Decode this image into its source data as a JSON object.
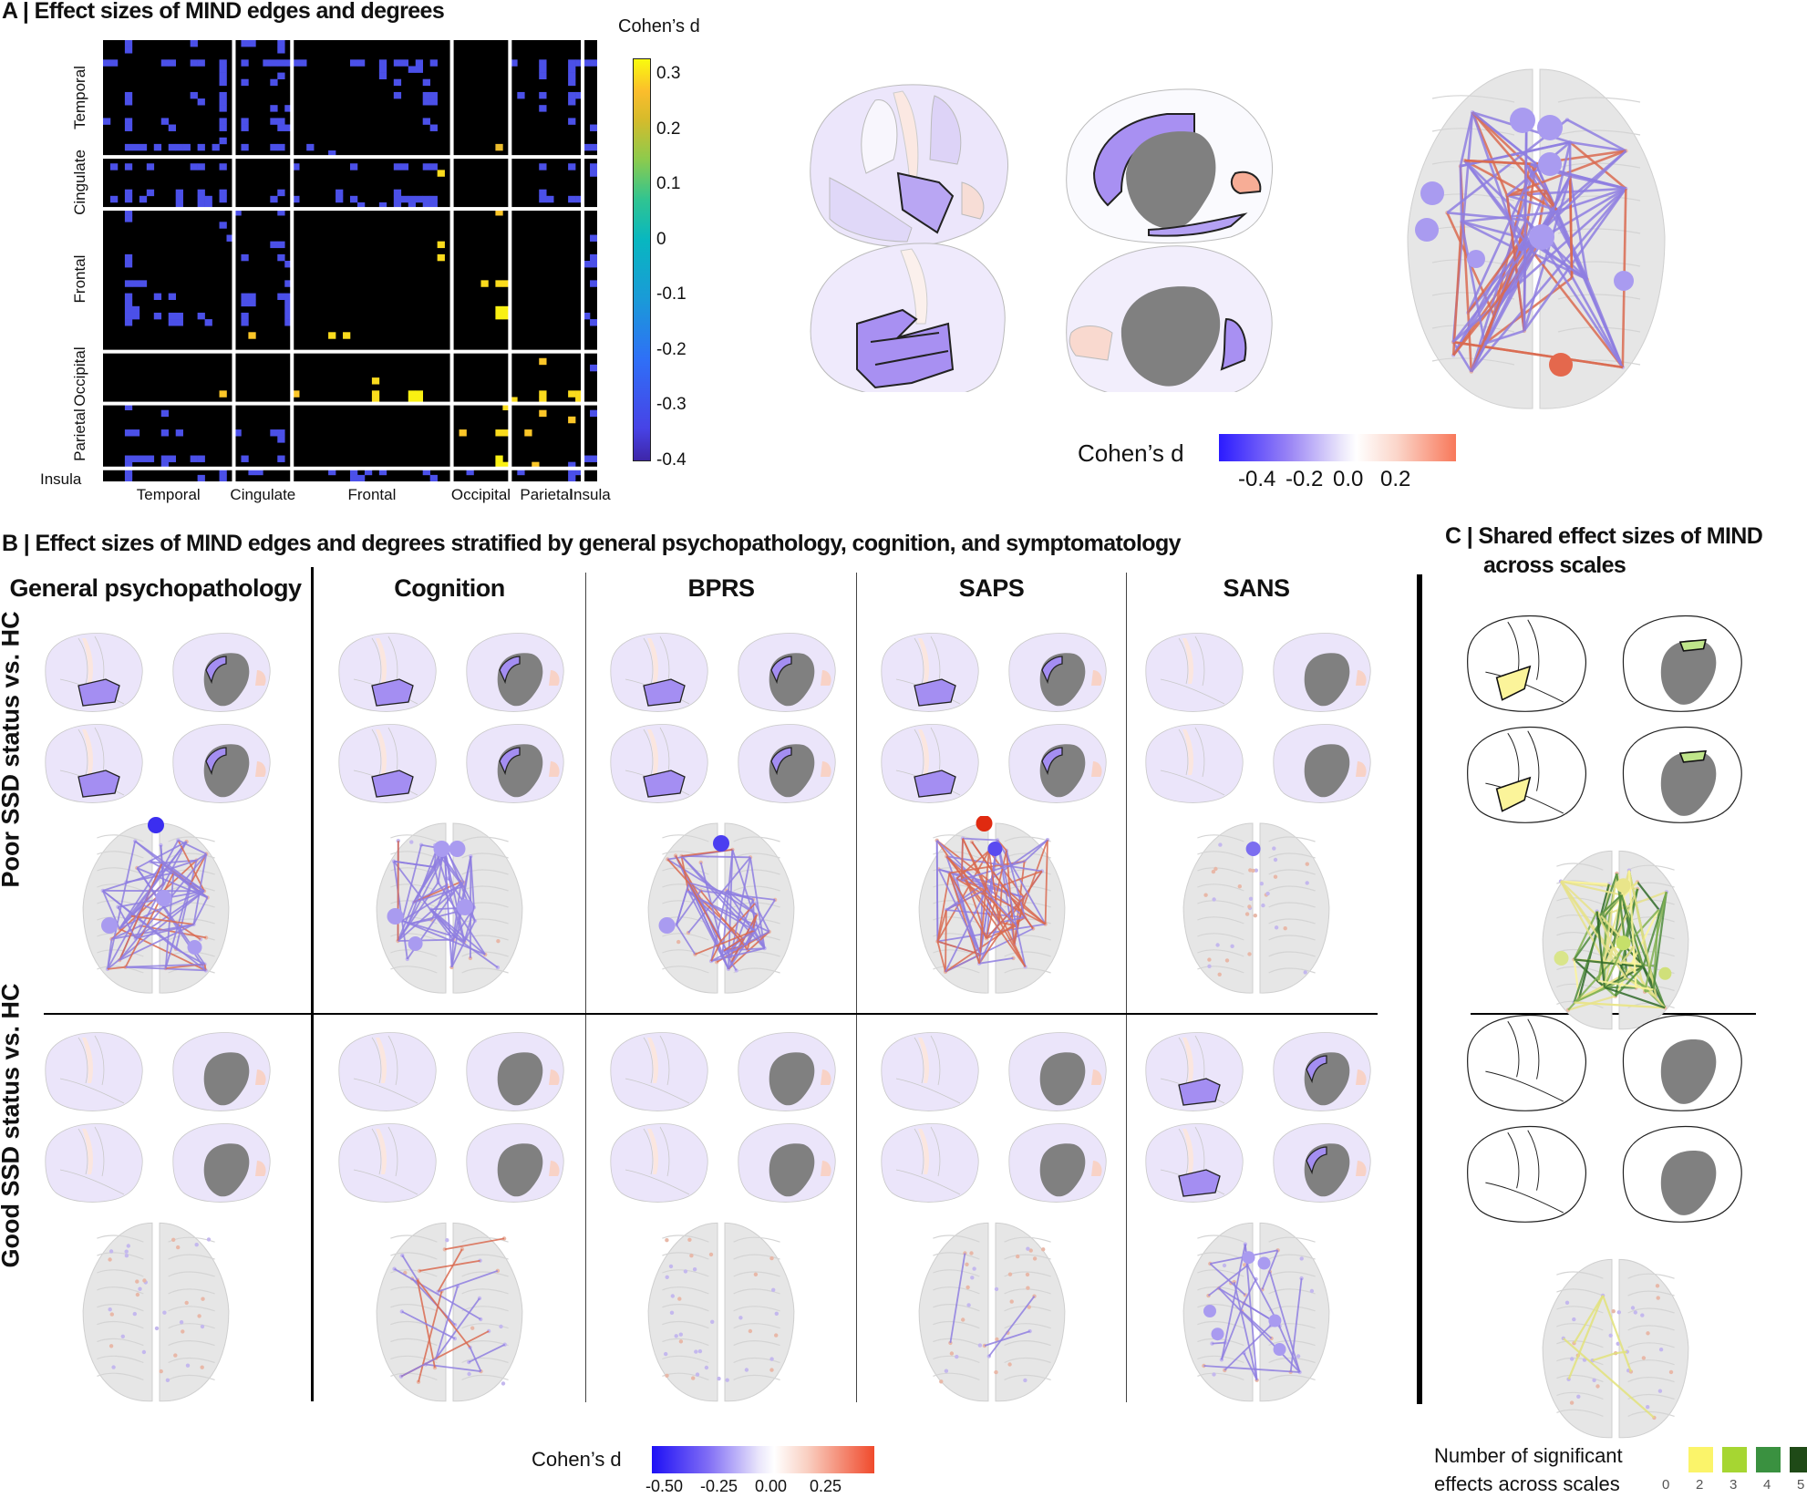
{
  "panel_a": {
    "title": "A | Effect sizes of MIND edges and degrees",
    "colorbar_title": "Cohen’s d",
    "colorbar_ticks": [
      "0.3",
      "0.2",
      "0.1",
      "0",
      "-0.1",
      "-0.2",
      "-0.3",
      "-0.4"
    ],
    "surface_legend": {
      "title": "Cohen’s d",
      "ticks": [
        "-0.4",
        "-0.2",
        "0.0",
        "0.2"
      ],
      "colors": {
        "neg": "#2b1bff",
        "mid": "#ffffff",
        "pos": "#f8785a"
      }
    }
  },
  "panel_b": {
    "title": "B | Effect sizes of MIND edges and degrees stratified by general psychopathology, cognition, and symptomatology",
    "columns": [
      "General psychopathology",
      "Cognition",
      "BPRS",
      "SAPS",
      "SANS"
    ],
    "rows": [
      "Poor SSD status vs. HC",
      "Good SSD status vs. HC"
    ],
    "legend": {
      "title": "Cohen’s d",
      "ticks": [
        "-0.50",
        "-0.25",
        "0.00",
        "0.25"
      ],
      "colors": {
        "neg": "#1e10f5",
        "mid": "#ffffff",
        "pos": "#f04a2c"
      }
    }
  },
  "panel_c": {
    "title_line1": "C | Shared effect sizes of MIND",
    "title_line2": "across scales",
    "legend": {
      "title_line1": "Number of significant",
      "title_line2": "effects across scales",
      "items": [
        {
          "label": "0",
          "color": "#ffffff"
        },
        {
          "label": "2",
          "color": "#fbf46a"
        },
        {
          "label": "3",
          "color": "#a6d632"
        },
        {
          "label": "4",
          "color": "#3a9140"
        },
        {
          "label": "5",
          "color": "#1f4a17"
        }
      ]
    }
  },
  "chart_data": {
    "type": "heatmap",
    "title": "Effect sizes of MIND edges and degrees",
    "colorbar_label": "Cohen’s d",
    "colorbar_range": [
      -0.4,
      0.33
    ],
    "colormap": "parula",
    "background": "#000000",
    "n_regions": 68,
    "groups": [
      {
        "name": "Temporal",
        "size": 18
      },
      {
        "name": "Cingulate",
        "size": 8
      },
      {
        "name": "Frontal",
        "size": 22
      },
      {
        "name": "Occipital",
        "size": 8
      },
      {
        "name": "Parietal",
        "size": 10
      },
      {
        "name": "Insula",
        "size": 2
      }
    ],
    "x_tick_labels": [
      "Temporal",
      "Cingulate",
      "Frontal",
      "Occipital",
      "Parietal",
      "Insula"
    ],
    "y_tick_labels": [
      "Temporal",
      "Cingulate",
      "Frontal",
      "Occipital",
      "Parietal",
      "Insula"
    ],
    "significant_cells": [
      [
        0,
        3,
        -0.33
      ],
      [
        0,
        12,
        -0.33
      ],
      [
        0,
        19,
        -0.33
      ],
      [
        0,
        20,
        -0.33
      ],
      [
        0,
        24,
        -0.33
      ],
      [
        1,
        3,
        -0.33
      ],
      [
        1,
        24,
        -0.33
      ],
      [
        3,
        0,
        -0.33
      ],
      [
        3,
        1,
        -0.33
      ],
      [
        3,
        8,
        -0.33
      ],
      [
        3,
        9,
        -0.33
      ],
      [
        3,
        12,
        -0.33
      ],
      [
        3,
        13,
        -0.33
      ],
      [
        3,
        16,
        -0.36
      ],
      [
        3,
        19,
        -0.33
      ],
      [
        3,
        22,
        -0.33
      ],
      [
        3,
        23,
        -0.33
      ],
      [
        3,
        24,
        -0.33
      ],
      [
        3,
        25,
        -0.33
      ],
      [
        3,
        26,
        -0.33
      ],
      [
        3,
        27,
        -0.33
      ],
      [
        3,
        34,
        -0.33
      ],
      [
        3,
        35,
        -0.33
      ],
      [
        3,
        38,
        -0.33
      ],
      [
        3,
        40,
        -0.35
      ],
      [
        3,
        41,
        -0.35
      ],
      [
        3,
        43,
        -0.33
      ],
      [
        3,
        45,
        -0.35
      ],
      [
        3,
        56,
        -0.33
      ],
      [
        3,
        60,
        -0.33
      ],
      [
        3,
        64,
        -0.33
      ],
      [
        3,
        65,
        -0.33
      ],
      [
        3,
        66,
        -0.33
      ],
      [
        3,
        67,
        -0.33
      ],
      [
        4,
        16,
        -0.36
      ],
      [
        4,
        38,
        -0.33
      ],
      [
        4,
        42,
        -0.33
      ],
      [
        4,
        43,
        -0.33
      ],
      [
        4,
        60,
        -0.33
      ],
      [
        4,
        64,
        -0.33
      ],
      [
        5,
        16,
        -0.36
      ],
      [
        5,
        24,
        -0.33
      ],
      [
        5,
        38,
        -0.33
      ],
      [
        5,
        60,
        -0.33
      ],
      [
        5,
        64,
        -0.33
      ],
      [
        6,
        16,
        -0.33
      ],
      [
        6,
        19,
        -0.33
      ],
      [
        6,
        23,
        -0.33
      ],
      [
        6,
        40,
        -0.33
      ],
      [
        6,
        44,
        -0.33
      ],
      [
        6,
        64,
        -0.33
      ],
      [
        8,
        3,
        -0.33
      ],
      [
        8,
        12,
        -0.33
      ],
      [
        8,
        16,
        -0.33
      ],
      [
        8,
        40,
        -0.33
      ],
      [
        8,
        44,
        -0.35
      ],
      [
        8,
        45,
        -0.35
      ],
      [
        8,
        57,
        -0.33
      ],
      [
        8,
        60,
        -0.33
      ],
      [
        8,
        64,
        -0.36
      ],
      [
        8,
        65,
        -0.36
      ],
      [
        9,
        3,
        -0.33
      ],
      [
        9,
        13,
        -0.33
      ],
      [
        9,
        16,
        -0.33
      ],
      [
        9,
        44,
        -0.35
      ],
      [
        9,
        45,
        -0.35
      ],
      [
        9,
        64,
        -0.36
      ],
      [
        10,
        16,
        -0.33
      ],
      [
        10,
        23,
        -0.33
      ],
      [
        10,
        25,
        -0.33
      ],
      [
        10,
        60,
        -0.33
      ],
      [
        12,
        0,
        -0.33
      ],
      [
        12,
        3,
        -0.33
      ],
      [
        12,
        8,
        -0.33
      ],
      [
        12,
        16,
        -0.33
      ],
      [
        12,
        19,
        -0.36
      ],
      [
        12,
        23,
        -0.33
      ],
      [
        12,
        24,
        -0.33
      ],
      [
        12,
        44,
        -0.33
      ],
      [
        12,
        64,
        -0.33
      ],
      [
        13,
        3,
        -0.33
      ],
      [
        13,
        9,
        -0.33
      ],
      [
        13,
        16,
        -0.33
      ],
      [
        13,
        19,
        -0.36
      ],
      [
        13,
        24,
        -0.35
      ],
      [
        13,
        25,
        -0.35
      ],
      [
        13,
        45,
        -0.33
      ],
      [
        13,
        67,
        -0.33
      ],
      [
        15,
        16,
        -0.33
      ],
      [
        16,
        3,
        -0.33
      ],
      [
        16,
        4,
        -0.33
      ],
      [
        16,
        5,
        -0.33
      ],
      [
        16,
        7,
        -0.33
      ],
      [
        16,
        9,
        -0.33
      ],
      [
        16,
        10,
        -0.33
      ],
      [
        16,
        11,
        -0.33
      ],
      [
        16,
        13,
        -0.33
      ],
      [
        16,
        15,
        -0.33
      ],
      [
        16,
        19,
        -0.33
      ],
      [
        16,
        23,
        -0.33
      ],
      [
        16,
        24,
        -0.33
      ],
      [
        16,
        28,
        -0.33
      ],
      [
        16,
        54,
        0.25
      ],
      [
        16,
        66,
        -0.33
      ],
      [
        16,
        67,
        -0.33
      ],
      [
        17,
        31,
        -0.33
      ],
      [
        19,
        1,
        -0.33
      ],
      [
        19,
        3,
        -0.33
      ],
      [
        19,
        6,
        -0.33
      ],
      [
        19,
        12,
        -0.35
      ],
      [
        19,
        13,
        -0.35
      ],
      [
        19,
        16,
        -0.33
      ],
      [
        19,
        26,
        -0.33
      ],
      [
        19,
        34,
        -0.33
      ],
      [
        19,
        40,
        -0.33
      ],
      [
        19,
        41,
        -0.33
      ],
      [
        19,
        44,
        -0.35
      ],
      [
        19,
        45,
        -0.35
      ],
      [
        19,
        60,
        -0.33
      ],
      [
        19,
        64,
        -0.33
      ],
      [
        19,
        67,
        -0.33
      ],
      [
        20,
        46,
        0.3
      ],
      [
        20,
        67,
        -0.33
      ],
      [
        23,
        3,
        -0.33
      ],
      [
        23,
        6,
        -0.33
      ],
      [
        23,
        10,
        -0.33
      ],
      [
        23,
        13,
        -0.33
      ],
      [
        23,
        16,
        -0.33
      ],
      [
        23,
        24,
        -0.33
      ],
      [
        23,
        32,
        -0.33
      ],
      [
        23,
        40,
        -0.33
      ],
      [
        23,
        60,
        -0.33
      ],
      [
        24,
        1,
        -0.33
      ],
      [
        24,
        3,
        -0.33
      ],
      [
        24,
        5,
        -0.33
      ],
      [
        24,
        10,
        -0.33
      ],
      [
        24,
        13,
        -0.35
      ],
      [
        24,
        14,
        -0.35
      ],
      [
        24,
        16,
        -0.33
      ],
      [
        24,
        23,
        -0.33
      ],
      [
        24,
        26,
        -0.33
      ],
      [
        24,
        32,
        -0.33
      ],
      [
        24,
        34,
        -0.33
      ],
      [
        24,
        40,
        -0.35
      ],
      [
        24,
        41,
        -0.35
      ],
      [
        24,
        42,
        -0.35
      ],
      [
        24,
        43,
        -0.35
      ],
      [
        24,
        44,
        -0.35
      ],
      [
        24,
        45,
        -0.35
      ],
      [
        24,
        60,
        -0.33
      ],
      [
        24,
        61,
        -0.33
      ],
      [
        24,
        64,
        -0.36
      ],
      [
        24,
        65,
        -0.33
      ],
      [
        25,
        10,
        -0.33
      ],
      [
        25,
        13,
        -0.33
      ],
      [
        25,
        14,
        -0.33
      ],
      [
        25,
        35,
        -0.33
      ],
      [
        25,
        38,
        -0.33
      ],
      [
        25,
        40,
        -0.33
      ],
      [
        25,
        42,
        -0.33
      ],
      [
        25,
        44,
        -0.33
      ],
      [
        25,
        45,
        -0.33
      ],
      [
        26,
        3,
        -0.33
      ],
      [
        26,
        18,
        -0.33
      ],
      [
        26,
        24,
        -0.33
      ],
      [
        26,
        54,
        0.28
      ],
      [
        27,
        3,
        -0.33
      ],
      [
        28,
        16,
        -0.33
      ],
      [
        30,
        17,
        -0.33
      ],
      [
        30,
        67,
        -0.33
      ],
      [
        31,
        23,
        -0.33
      ],
      [
        31,
        24,
        -0.33
      ],
      [
        31,
        46,
        0.3
      ],
      [
        33,
        3,
        -0.33
      ],
      [
        33,
        19,
        -0.33
      ],
      [
        33,
        24,
        -0.33
      ],
      [
        33,
        46,
        0.3
      ],
      [
        33,
        67,
        -0.36
      ],
      [
        34,
        3,
        -0.33
      ],
      [
        34,
        25,
        -0.33
      ],
      [
        34,
        66,
        -0.33
      ],
      [
        34,
        67,
        -0.36
      ],
      [
        37,
        3,
        -0.33
      ],
      [
        37,
        4,
        -0.33
      ],
      [
        37,
        5,
        -0.33
      ],
      [
        37,
        25,
        -0.33
      ],
      [
        37,
        52,
        0.3
      ],
      [
        37,
        54,
        0.3
      ],
      [
        37,
        55,
        0.3
      ],
      [
        37,
        67,
        -0.33
      ],
      [
        39,
        3,
        -0.36
      ],
      [
        39,
        7,
        -0.33
      ],
      [
        39,
        9,
        -0.33
      ],
      [
        39,
        19,
        -0.35
      ],
      [
        39,
        20,
        -0.35
      ],
      [
        39,
        24,
        -0.33
      ],
      [
        39,
        25,
        -0.33
      ],
      [
        40,
        3,
        -0.36
      ],
      [
        40,
        19,
        -0.35
      ],
      [
        40,
        20,
        -0.35
      ],
      [
        40,
        25,
        -0.33
      ],
      [
        41,
        3,
        -0.33
      ],
      [
        41,
        4,
        -0.33
      ],
      [
        41,
        25,
        -0.33
      ],
      [
        41,
        54,
        0.32
      ],
      [
        41,
        55,
        0.32
      ],
      [
        42,
        3,
        -0.33
      ],
      [
        42,
        4,
        -0.33
      ],
      [
        42,
        7,
        -0.33
      ],
      [
        42,
        9,
        -0.33
      ],
      [
        42,
        10,
        -0.33
      ],
      [
        42,
        13,
        -0.33
      ],
      [
        42,
        19,
        -0.33
      ],
      [
        42,
        25,
        -0.35
      ],
      [
        42,
        54,
        0.32
      ],
      [
        42,
        55,
        0.32
      ],
      [
        42,
        66,
        -0.33
      ],
      [
        43,
        3,
        -0.33
      ],
      [
        43,
        9,
        -0.33
      ],
      [
        43,
        10,
        -0.33
      ],
      [
        43,
        14,
        -0.33
      ],
      [
        43,
        19,
        -0.33
      ],
      [
        43,
        25,
        -0.35
      ],
      [
        43,
        67,
        -0.33
      ],
      [
        45,
        20,
        0.28
      ],
      [
        45,
        31,
        0.3
      ],
      [
        45,
        33,
        0.3
      ],
      [
        49,
        60,
        0.28
      ],
      [
        50,
        67,
        -0.33
      ],
      [
        52,
        37,
        0.3
      ],
      [
        54,
        16,
        0.28
      ],
      [
        54,
        26,
        0.28
      ],
      [
        54,
        37,
        0.3
      ],
      [
        54,
        42,
        0.32
      ],
      [
        54,
        43,
        0.32
      ],
      [
        54,
        60,
        0.3
      ],
      [
        54,
        64,
        0.3
      ],
      [
        54,
        65,
        0.3
      ],
      [
        55,
        37,
        0.3
      ],
      [
        55,
        42,
        0.32
      ],
      [
        55,
        43,
        0.32
      ],
      [
        55,
        56,
        0.3
      ],
      [
        55,
        60,
        0.3
      ],
      [
        55,
        65,
        0.3
      ],
      [
        56,
        3,
        -0.33
      ],
      [
        56,
        55,
        0.3
      ],
      [
        57,
        8,
        -0.33
      ],
      [
        57,
        60,
        0.28
      ],
      [
        57,
        67,
        -0.33
      ],
      [
        58,
        64,
        0.28
      ],
      [
        60,
        3,
        -0.33
      ],
      [
        60,
        4,
        -0.33
      ],
      [
        60,
        8,
        -0.33
      ],
      [
        60,
        10,
        -0.33
      ],
      [
        60,
        18,
        -0.33
      ],
      [
        60,
        23,
        -0.33
      ],
      [
        60,
        24,
        -0.33
      ],
      [
        60,
        49,
        0.28
      ],
      [
        60,
        54,
        0.3
      ],
      [
        60,
        55,
        0.3
      ],
      [
        60,
        58,
        0.28
      ],
      [
        61,
        24,
        -0.33
      ],
      [
        64,
        3,
        -0.33
      ],
      [
        64,
        4,
        -0.33
      ],
      [
        64,
        5,
        -0.33
      ],
      [
        64,
        6,
        -0.33
      ],
      [
        64,
        8,
        -0.35
      ],
      [
        64,
        9,
        -0.35
      ],
      [
        64,
        12,
        -0.33
      ],
      [
        64,
        13,
        -0.33
      ],
      [
        64,
        19,
        -0.33
      ],
      [
        64,
        24,
        -0.33
      ],
      [
        64,
        54,
        0.32
      ],
      [
        64,
        66,
        -0.33
      ],
      [
        64,
        67,
        -0.33
      ],
      [
        65,
        3,
        -0.33
      ],
      [
        65,
        8,
        -0.33
      ],
      [
        65,
        54,
        0.32
      ],
      [
        65,
        55,
        0.32
      ],
      [
        65,
        59,
        0.28
      ],
      [
        65,
        64,
        -0.33
      ],
      [
        66,
        3,
        -0.33
      ],
      [
        66,
        16,
        -0.33
      ],
      [
        66,
        20,
        -0.33
      ],
      [
        66,
        21,
        -0.33
      ],
      [
        66,
        31,
        -0.33
      ],
      [
        66,
        34,
        -0.33
      ],
      [
        66,
        36,
        -0.33
      ],
      [
        66,
        38,
        -0.33
      ],
      [
        66,
        44,
        -0.33
      ],
      [
        66,
        50,
        -0.33
      ],
      [
        66,
        57,
        -0.33
      ],
      [
        66,
        64,
        -0.36
      ],
      [
        66,
        65,
        -0.36
      ],
      [
        67,
        3,
        -0.33
      ],
      [
        67,
        13,
        -0.33
      ],
      [
        67,
        16,
        -0.33
      ],
      [
        67,
        34,
        -0.33
      ],
      [
        67,
        35,
        -0.33
      ],
      [
        67,
        45,
        -0.33
      ],
      [
        67,
        64,
        -0.33
      ]
    ]
  }
}
